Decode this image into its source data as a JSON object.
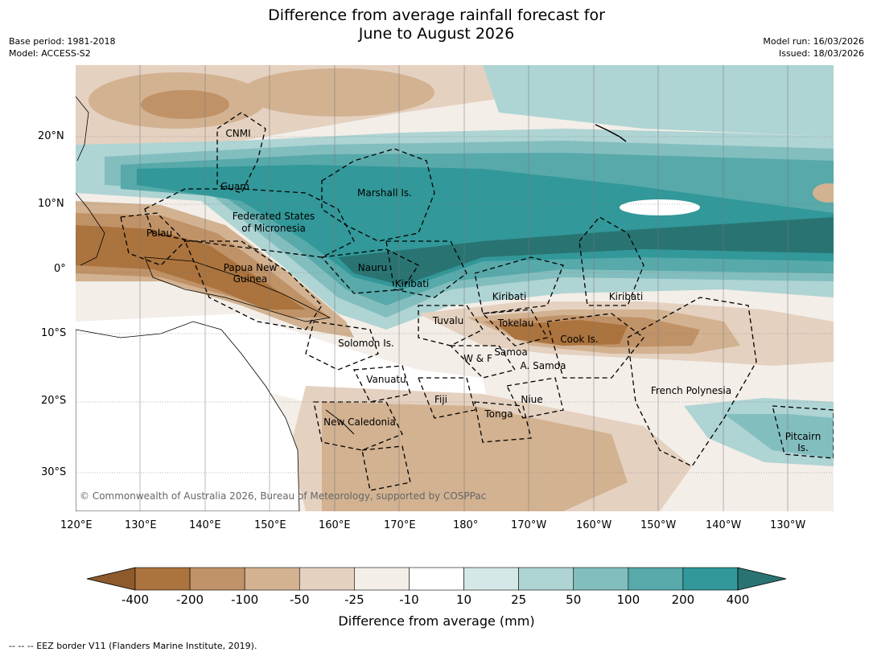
{
  "title": {
    "line1": "Difference from average rainfall forecast for",
    "line2": "June to August 2026"
  },
  "meta_left": {
    "base_period": "Base period: 1981-2018",
    "model": "Model: ACCESS-S2"
  },
  "meta_right": {
    "model_run": "Model run: 16/03/2026",
    "issued": "Issued: 18/03/2026"
  },
  "map": {
    "lat_ticks": [
      "20°N",
      "10°N",
      "0°",
      "10°S",
      "20°S",
      "30°S"
    ],
    "lon_ticks": [
      "120°E",
      "130°E",
      "140°E",
      "150°E",
      "160°E",
      "170°E",
      "180°",
      "170°W",
      "160°W",
      "150°W",
      "140°W",
      "130°W"
    ],
    "copyright": "© Commonwealth of Australia 2026, Bureau of Meteorology, supported by COSPPac",
    "regions": [
      "CNMI",
      "Guam",
      "Marshall Is.",
      "Federated States",
      "of Micronesia",
      "Palau",
      "Papua New",
      "Guinea",
      "Nauru",
      "Kiribati",
      "Kiribati",
      "Kiribati",
      "Tuvalu",
      "Tokelau",
      "Cook Is.",
      "Solomon Is.",
      "W & F",
      "Samoa",
      "A. Samoa",
      "Vanuatu",
      "Fiji",
      "Niue",
      "French Polynesia",
      "Tonga",
      "New Caledonia",
      "Pitcairn",
      "Is."
    ]
  },
  "colorbar": {
    "ticks": [
      "-400",
      "-200",
      "-100",
      "-50",
      "-25",
      "-10",
      "10",
      "25",
      "50",
      "100",
      "200",
      "400"
    ],
    "colors": [
      "#8e5a2c",
      "#ab733d",
      "#c09267",
      "#d2b291",
      "#e5d1c0",
      "#f3eee8",
      "#ffffff",
      "#d3e8e7",
      "#aed4d3",
      "#83bebf",
      "#57a9aa",
      "#329899",
      "#297473"
    ],
    "label": "Difference from average (mm)"
  },
  "footer": "--  --  -- EEZ border V11 (Flanders Marine Institute, 2019)."
}
